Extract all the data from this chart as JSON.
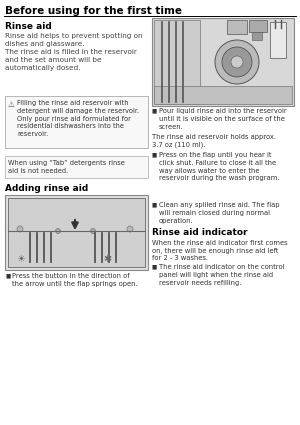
{
  "page_title": "Before using for the first time",
  "bg_color": "#ffffff",
  "section1_title": "Rinse aid",
  "section1_body": "Rinse aid helps to prevent spotting on\ndishes and glassware.\nThe rinse aid is filled in the reservoir\nand the set amount will be\nautomatically dosed.",
  "warning_text": "Filling the rinse aid reservoir with\ndetergent will damage the reservoir.\nOnly pour rinse aid formulated for\nresidential dishwashers into the\nreservoir.",
  "tab_text": "When using “Tab” detergents rinse\naid is not needed.",
  "section2_title": "Adding rinse aid",
  "bullet1_left": "Press the button in the direction of\nthe arrow until the flap springs open.",
  "bullet1_right": "Pour liquid rinse aid into the reservoir\nuntil it is visible on the surface of the\nscreen.",
  "capacity_text": "The rinse aid reservoir holds approx.\n3.7 oz (110 ml).",
  "bullet2_right": "Press on the flap until you hear it\nclick shut. Failure to close it all the\nway allows water to enter the\nreservoir during the wash program.",
  "bullet3_right": "Clean any spilled rinse aid. The flap\nwill remain closed during normal\noperation.",
  "section3_title": "Rinse aid indicator",
  "section3_body": "When the rinse aid indicator first comes\non, there will be enough rinse aid left\nfor 2 - 3 washes.",
  "bullet4_right": "The rinse aid indicator on the control\npanel will light when the rinse aid\nreservoir needs refilling.",
  "title_line_color": "#000000",
  "box_border_color": "#aaaaaa",
  "text_color": "#333333",
  "title_color": "#000000",
  "fig_w": 3.0,
  "fig_h": 4.25,
  "dpi": 100
}
